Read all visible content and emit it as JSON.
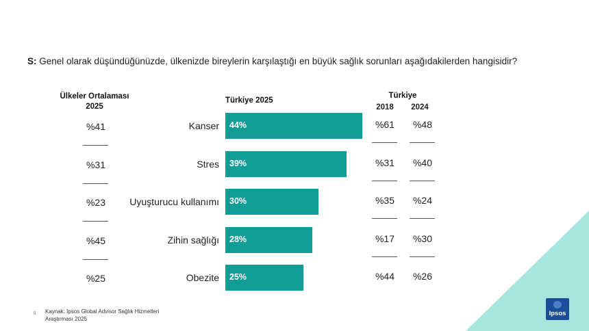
{
  "question": {
    "prefix": "S:",
    "text": "Genel olarak düşündüğünüzde, ülkenizde bireylerin karşılaştığı en büyük sağlık sorunları aşağıdakilerden hangisidir?"
  },
  "headers": {
    "countries_avg": "Ülkeler Ortalaması",
    "countries_avg_year": "2025",
    "turkey_2025": "Türkiye 2025",
    "turkey": "Türkiye",
    "year_2018": "2018",
    "year_2024": "2024"
  },
  "chart_data": {
    "type": "bar",
    "orientation": "horizontal",
    "categories": [
      "Kanser",
      "Stres",
      "Uyuşturucu kullanımı",
      "Zihin sağlığı",
      "Obezite"
    ],
    "values": [
      44,
      39,
      30,
      28,
      25
    ],
    "value_labels": [
      "44%",
      "39%",
      "30%",
      "28%",
      "25%"
    ],
    "title": "Türkiye 2025",
    "bar_color": "#129c96"
  },
  "rows": [
    {
      "avg": "%41",
      "y2018": "%61",
      "y2024": "%48"
    },
    {
      "avg": "%31",
      "y2018": "%31",
      "y2024": "%40"
    },
    {
      "avg": "%23",
      "y2018": "%35",
      "y2024": "%24"
    },
    {
      "avg": "%45",
      "y2018": "%17",
      "y2024": "%30"
    },
    {
      "avg": "%25",
      "y2018": "%44",
      "y2024": "%26"
    }
  ],
  "source": "Kaynak: Ipsos Global Advisor Sağlık Hizmetleri Araştırması 2025",
  "page_number": "5",
  "logo_text": "Ipsos",
  "colors": {
    "accent": "#129c96",
    "corner": "#a7e6dc",
    "logo": "#1b4f9c"
  }
}
